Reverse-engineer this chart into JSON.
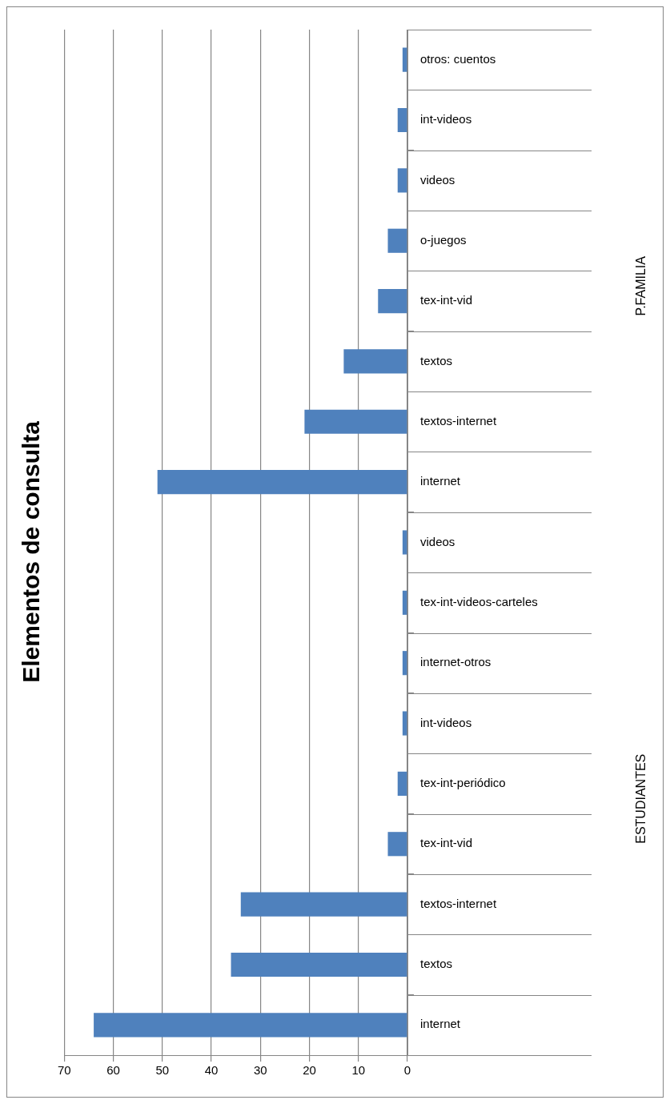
{
  "chart_data": {
    "type": "bar",
    "orientation": "horizontal",
    "title": "Elementos de consulta",
    "categories": [
      "otros: cuentos",
      "int-videos",
      "videos",
      "o-juegos",
      "tex-int-vid",
      "textos",
      "textos-internet",
      "internet",
      "videos",
      "tex-int-videos-carteles",
      "internet-otros",
      "int-videos",
      "tex-int-periódico",
      "tex-int-vid",
      "textos-internet",
      "textos",
      "internet"
    ],
    "values": [
      1,
      2,
      2,
      4,
      6,
      13,
      21,
      51,
      1,
      1,
      1,
      1,
      2,
      4,
      34,
      36,
      64
    ],
    "color": "#4f81bd",
    "xlim": [
      70,
      0
    ],
    "xticks": [
      70,
      60,
      50,
      40,
      30,
      20,
      10,
      0
    ],
    "grid": "x",
    "legend": false,
    "annotations": [
      "P.FAMILIA",
      "ESTUDIANTES"
    ]
  }
}
